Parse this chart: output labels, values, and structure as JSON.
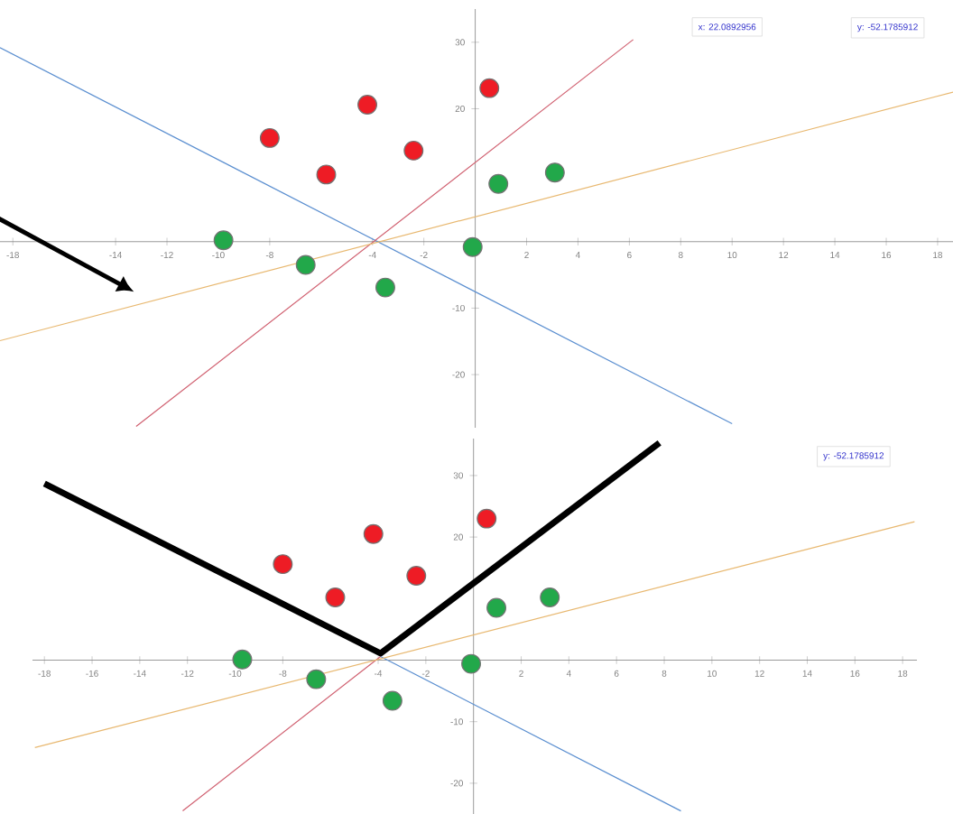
{
  "chart_data": [
    {
      "type": "scatter",
      "xlim": [
        -18.5,
        18.6
      ],
      "ylim": [
        -28,
        35
      ],
      "xticks": [
        -18,
        -14,
        -12,
        -10,
        -8,
        -4,
        -2,
        2,
        4,
        6,
        8,
        10,
        12,
        14,
        16,
        18
      ],
      "yticks": [
        -20,
        -10,
        20,
        30
      ],
      "annotations": [
        "x: 22.0892956",
        "y: -52.1785912"
      ],
      "series": [
        {
          "type": "line",
          "color": "#5b8fd0",
          "x": [
            -18.5,
            10
          ],
          "values": [
            29.2,
            -27.4
          ],
          "marker": "none"
        },
        {
          "type": "line",
          "color": "#d06070",
          "x": [
            -13.2,
            6.15
          ],
          "values": [
            -27.8,
            30.4
          ],
          "marker": "none"
        },
        {
          "type": "line",
          "color": "#e8b870",
          "x": [
            -18.5,
            18.6
          ],
          "values": [
            -14.9,
            22.5
          ],
          "marker": "none"
        },
        {
          "type": "scatter",
          "color": "#ee1c25",
          "x": [
            -8.0,
            -5.8,
            -4.2,
            -2.4,
            0.55
          ],
          "values": [
            15.6,
            10.1,
            20.6,
            13.7,
            23.1
          ],
          "marker": "circle"
        },
        {
          "type": "scatter",
          "color": "#22a84a",
          "x": [
            -9.8,
            -6.6,
            -3.5,
            -0.1,
            0.9,
            3.1
          ],
          "values": [
            0.2,
            -3.5,
            -6.9,
            -0.8,
            8.7,
            10.4
          ],
          "marker": "circle"
        }
      ]
    },
    {
      "type": "scatter",
      "xlim": [
        -18.5,
        18.6
      ],
      "ylim": [
        -25,
        36
      ],
      "xticks": [
        -18,
        -16,
        -14,
        -12,
        -10,
        -8,
        -4,
        -2,
        2,
        4,
        6,
        8,
        10,
        12,
        14,
        16,
        18
      ],
      "yticks": [
        -20,
        -10,
        20,
        30
      ],
      "annotations": [
        "y: -52.1785912"
      ],
      "series": [
        {
          "type": "line",
          "color": "#5b8fd0",
          "x": [
            -3.9,
            8.7
          ],
          "values": [
            0.6,
            -24.5
          ],
          "marker": "none"
        },
        {
          "type": "line",
          "color": "#d06070",
          "x": [
            -12.2,
            -3.9
          ],
          "values": [
            -24.5,
            0.6
          ],
          "marker": "none"
        },
        {
          "type": "line",
          "color": "#e8b870",
          "x": [
            -18.4,
            18.5
          ],
          "values": [
            -14.2,
            22.5
          ],
          "marker": "none"
        },
        {
          "type": "line",
          "color": "#000000",
          "x": [
            -18.0,
            -3.9,
            7.8
          ],
          "values": [
            28.7,
            1.1,
            35.3
          ],
          "marker": "none"
        },
        {
          "type": "scatter",
          "color": "#ee1c25",
          "x": [
            -8.0,
            -5.8,
            -4.2,
            -2.4,
            0.55
          ],
          "values": [
            15.6,
            10.2,
            20.5,
            13.7,
            23.0
          ],
          "marker": "circle"
        },
        {
          "type": "scatter",
          "color": "#22a84a",
          "x": [
            -9.7,
            -6.6,
            -3.4,
            -0.1,
            0.96,
            3.2
          ],
          "values": [
            0.1,
            -3.1,
            -6.6,
            -0.6,
            8.5,
            10.2
          ],
          "marker": "circle"
        }
      ]
    }
  ]
}
